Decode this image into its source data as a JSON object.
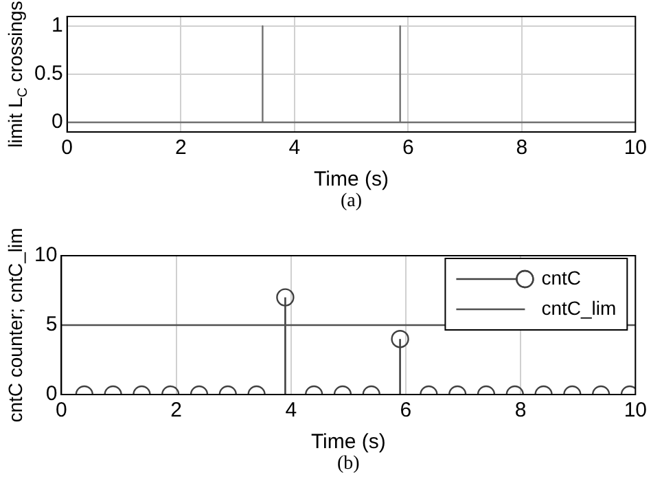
{
  "chart_data": [
    {
      "type": "line",
      "xlabel": "Time (s)",
      "ylabel": "limit L$_{C}$ crossings",
      "annotations": [
        "(a)"
      ],
      "xlim": [
        0,
        10
      ],
      "xticks": [
        0,
        2,
        4,
        6,
        8,
        10
      ],
      "ylim": [
        -0.1,
        1.1
      ],
      "yticks": [
        0,
        0.5,
        1
      ],
      "grid": true,
      "marker": "none",
      "series": [
        {
          "color": "#707070",
          "x": [
            0,
            3.44,
            3.44,
            3.44,
            5.86,
            5.86,
            5.86,
            10
          ],
          "values": [
            0,
            0,
            1,
            0,
            0,
            1,
            0,
            0
          ]
        }
      ]
    },
    {
      "type": "lollipop",
      "xlabel": "Time (s)",
      "ylabel": "cntC counter; cntC_lim",
      "annotations": [
        "(b)"
      ],
      "xlim": [
        0,
        10
      ],
      "xticks": [
        0,
        2,
        4,
        6,
        8,
        10
      ],
      "ylim": [
        0,
        10
      ],
      "yticks": [
        0,
        5,
        10
      ],
      "grid": true,
      "legend": "top right",
      "marker": "circle",
      "series": [
        {
          "name": "cntC",
          "color": "#404040",
          "x": [
            0.4,
            0.9,
            1.4,
            1.9,
            2.4,
            2.9,
            3.4,
            3.9,
            4.4,
            4.9,
            5.4,
            5.9,
            6.4,
            6.9,
            7.4,
            7.9,
            8.4,
            8.9,
            9.4,
            9.9
          ],
          "values": [
            0,
            0,
            0,
            0,
            0,
            0,
            0,
            7,
            0,
            0,
            0,
            4,
            0,
            0,
            0,
            0,
            0,
            0,
            0,
            0
          ]
        },
        {
          "name": "cntC_lim",
          "type": "line",
          "marker": "none",
          "color": "#505050",
          "x": [
            0,
            10
          ],
          "values": [
            5,
            5
          ]
        }
      ]
    }
  ]
}
